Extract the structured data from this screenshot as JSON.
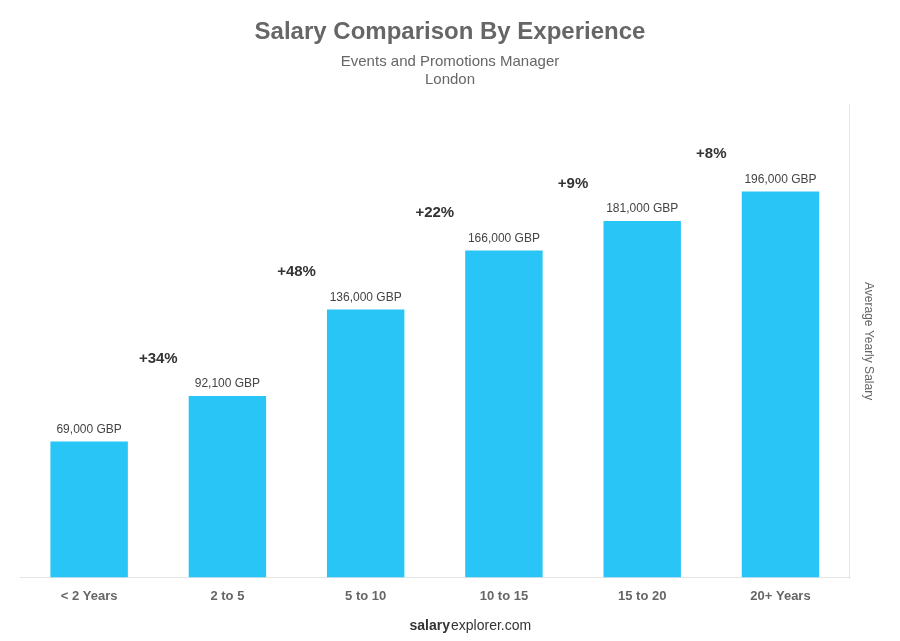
{
  "chart_data": {
    "type": "bar",
    "title": "Salary Comparison By Experience",
    "subtitle": [
      "Events and Promotions Manager",
      "London"
    ],
    "categories": [
      "< 2 Years",
      "2 to 5",
      "5 to 10",
      "10 to 15",
      "15 to 20",
      "20+ Years"
    ],
    "values": [
      69000,
      92100,
      136000,
      166000,
      181000,
      196000
    ],
    "value_labels": [
      "69,000 GBP",
      "92,100 GBP",
      "136,000 GBP",
      "166,000 GBP",
      "181,000 GBP",
      "196,000 GBP"
    ],
    "data_labels": true,
    "color": "#29c5f6",
    "ylim": [
      0,
      240000
    ],
    "ylabel": "Average Yearly Salary",
    "annotations": [
      "+34%",
      "+48%",
      "+22%",
      "+9%",
      "+8%"
    ],
    "footer": [
      "salary",
      "explorer.com"
    ],
    "grid": false,
    "tick_labels": "x"
  }
}
